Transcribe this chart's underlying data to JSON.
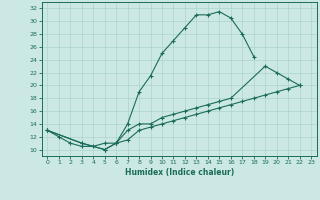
{
  "xlabel": "Humidex (Indice chaleur)",
  "ylabel": "",
  "bg_color": "#cce8e4",
  "line_color": "#1a6b5a",
  "grid_color": "#aad4cc",
  "xlim": [
    -0.5,
    23.5
  ],
  "ylim": [
    9,
    33
  ],
  "xticks": [
    0,
    1,
    2,
    3,
    4,
    5,
    6,
    7,
    8,
    9,
    10,
    11,
    12,
    13,
    14,
    15,
    16,
    17,
    18,
    19,
    20,
    21,
    22,
    23
  ],
  "yticks": [
    10,
    12,
    14,
    16,
    18,
    20,
    22,
    24,
    26,
    28,
    30,
    32
  ],
  "line1_x": [
    0,
    1,
    2,
    3,
    4,
    5,
    6,
    7,
    8,
    9,
    10,
    11,
    12,
    13,
    14,
    15,
    16,
    17,
    18
  ],
  "line1_y": [
    13,
    12,
    11,
    10.5,
    10.5,
    11,
    11,
    14,
    19,
    21.5,
    25,
    27,
    29,
    31,
    31,
    31.5,
    30.5,
    28,
    24.5
  ],
  "line2_x": [
    0,
    3,
    5,
    6,
    7,
    8,
    9,
    10,
    11,
    12,
    13,
    14,
    15,
    16,
    19,
    20,
    21,
    22
  ],
  "line2_y": [
    13,
    11,
    10,
    11,
    13,
    14,
    14,
    15,
    15.5,
    16,
    16.5,
    17,
    17.5,
    18,
    23,
    22,
    21,
    20
  ],
  "line3_x": [
    0,
    3,
    5,
    6,
    7,
    8,
    9,
    10,
    11,
    12,
    13,
    14,
    15,
    16,
    17,
    18,
    19,
    20,
    21,
    22
  ],
  "line3_y": [
    13,
    11,
    10,
    11,
    11.5,
    13,
    13.5,
    14,
    14.5,
    15,
    15.5,
    16,
    16.5,
    17,
    17.5,
    18,
    18.5,
    19,
    19.5,
    20
  ]
}
